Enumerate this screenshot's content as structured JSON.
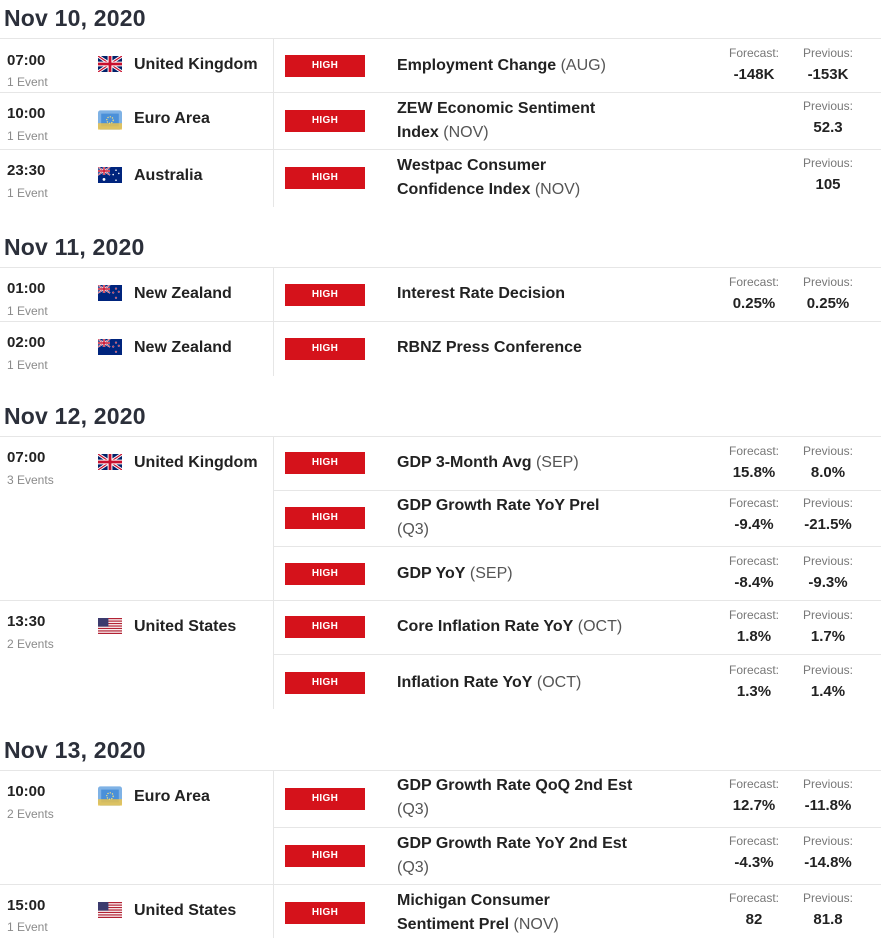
{
  "badge_label": "HIGH",
  "forecast_label": "Forecast:",
  "previous_label": "Previous:",
  "days": [
    {
      "date": "Nov 10, 2020",
      "rows": [
        {
          "time": "07:00",
          "events": "1 Event",
          "country": "United Kingdom",
          "flag": "uk-flag-icon",
          "name": "Employment Change",
          "period": "(AUG)",
          "name2": "",
          "period2": "",
          "forecast": "-148K",
          "previous": "-153K"
        },
        {
          "time": "10:00",
          "events": "1 Event",
          "country": "Euro Area",
          "flag": "eu-flag-icon",
          "name": "ZEW Economic Sentiment",
          "period": "",
          "name2": "Index",
          "period2": "(NOV)",
          "forecast": "",
          "previous": "52.3"
        },
        {
          "time": "23:30",
          "events": "1 Event",
          "country": "Australia",
          "flag": "australia-flag-icon",
          "name": "Westpac Consumer",
          "period": "",
          "name2": "Confidence Index",
          "period2": "(NOV)",
          "forecast": "",
          "previous": "105"
        }
      ]
    },
    {
      "date": "Nov 11, 2020",
      "rows": [
        {
          "time": "01:00",
          "events": "1 Event",
          "country": "New Zealand",
          "flag": "new-zealand-flag-icon",
          "name": "Interest Rate Decision",
          "period": "",
          "name2": "",
          "period2": "",
          "forecast": "0.25%",
          "previous": "0.25%"
        },
        {
          "time": "02:00",
          "events": "1 Event",
          "country": "New Zealand",
          "flag": "new-zealand-flag-icon",
          "name": "RBNZ Press Conference",
          "period": "",
          "name2": "",
          "period2": "",
          "forecast": "",
          "previous": ""
        }
      ]
    },
    {
      "date": "Nov 12, 2020",
      "rows": [
        {
          "time": "07:00",
          "events": "3 Events",
          "country": "United Kingdom",
          "flag": "uk-flag-icon",
          "name": "GDP 3-Month Avg",
          "period": "(SEP)",
          "name2": "",
          "period2": "",
          "forecast": "15.8%",
          "previous": "8.0%"
        },
        {
          "time": "",
          "events": "",
          "country": "",
          "flag": "",
          "name": "GDP Growth Rate YoY Prel",
          "period": "",
          "name2": "",
          "period2": "(Q3)",
          "forecast": "-9.4%",
          "previous": "-21.5%"
        },
        {
          "time": "",
          "events": "",
          "country": "",
          "flag": "",
          "name": "GDP YoY",
          "period": "(SEP)",
          "name2": "",
          "period2": "",
          "forecast": "-8.4%",
          "previous": "-9.3%"
        },
        {
          "time": "13:30",
          "events": "2 Events",
          "country": "United States",
          "flag": "us-flag-icon",
          "name": "Core Inflation Rate YoY",
          "period": "(OCT)",
          "name2": "",
          "period2": "",
          "forecast": "1.8%",
          "previous": "1.7%"
        },
        {
          "time": "",
          "events": "",
          "country": "",
          "flag": "",
          "name": "Inflation Rate YoY",
          "period": "(OCT)",
          "name2": "",
          "period2": "",
          "forecast": "1.3%",
          "previous": "1.4%"
        }
      ]
    },
    {
      "date": "Nov 13, 2020",
      "rows": [
        {
          "time": "10:00",
          "events": "2 Events",
          "country": "Euro Area",
          "flag": "eu-flag-icon",
          "name": "GDP Growth Rate QoQ 2nd Est",
          "period": "",
          "name2": "",
          "period2": "(Q3)",
          "forecast": "12.7%",
          "previous": "-11.8%"
        },
        {
          "time": "",
          "events": "",
          "country": "",
          "flag": "",
          "name": "GDP Growth Rate YoY 2nd Est",
          "period": "",
          "name2": "",
          "period2": "(Q3)",
          "forecast": "-4.3%",
          "previous": "-14.8%"
        },
        {
          "time": "15:00",
          "events": "1 Event",
          "country": "United States",
          "flag": "us-flag-icon",
          "name": "Michigan Consumer",
          "period": "",
          "name2": "Sentiment Prel",
          "period2": "(NOV)",
          "forecast": "82",
          "previous": "81.8"
        }
      ]
    }
  ]
}
